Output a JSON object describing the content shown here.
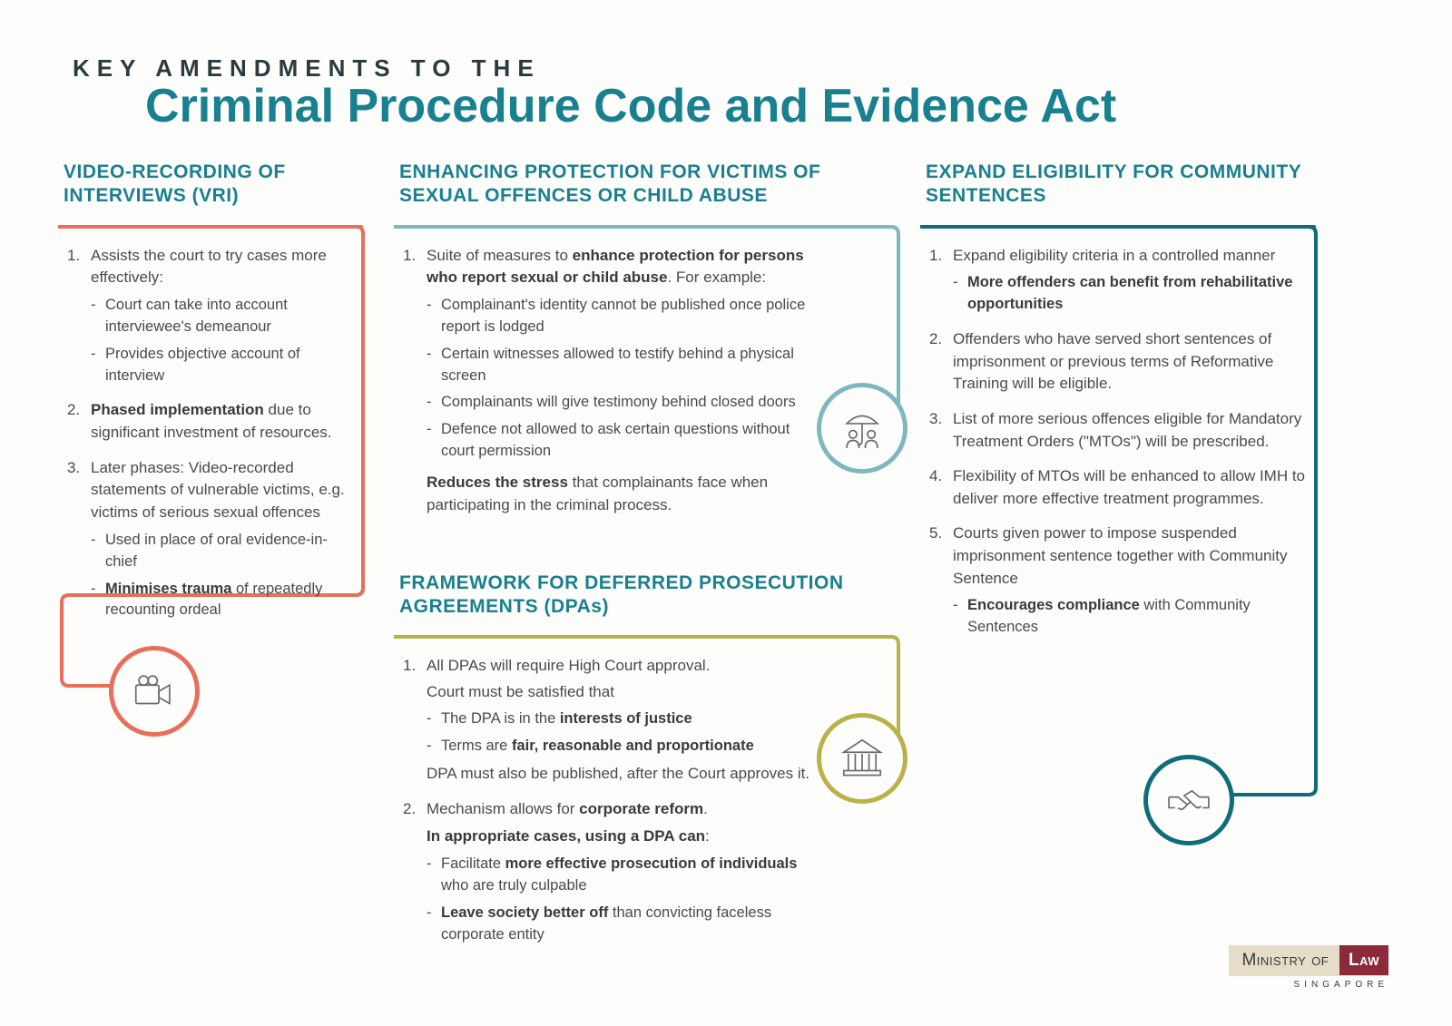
{
  "colors": {
    "teal": "#19808f",
    "coral": "#e76f5b",
    "teal_light": "#7fb7bf",
    "olive": "#b9b24a",
    "teal_dark": "#0f6d7a",
    "text": "#4a4a4a",
    "bg": "#fdfdfb"
  },
  "header": {
    "kicker": "KEY AMENDMENTS TO THE",
    "title": "Criminal Procedure Code and Evidence Act"
  },
  "sections": {
    "vri": {
      "title": "VIDEO-RECORDING OF INTERVIEWS (VRI)",
      "items": [
        {
          "text": "Assists the court to try cases more effectively:",
          "sub": [
            "Court can take into account interviewee's demeanour",
            "Provides objective account of interview"
          ]
        },
        {
          "html": "<b>Phased implementation</b> due to significant investment of resources."
        },
        {
          "text": "Later phases: Video-recorded statements of vulnerable victims, e.g. victims of serious sexual offences",
          "sub_html": [
            "Used in place of oral evidence-in-chief",
            "<b>Minimises trauma</b> of repeatedly recounting ordeal"
          ]
        }
      ]
    },
    "protection": {
      "title": "ENHANCING PROTECTION FOR VICTIMS OF SEXUAL OFFENCES OR CHILD ABUSE",
      "lead_html": "Suite of measures to <b>enhance protection for persons who report sexual or child abuse</b>. For example:",
      "sub": [
        "Complainant's identity cannot be published once police report is lodged",
        "Certain witnesses allowed to testify behind a physical screen",
        "Complainants will give testimony behind closed doors",
        "Defence not allowed to ask certain questions without court permission"
      ],
      "tail_html": "<b>Reduces the stress</b> that complainants face when participating in the criminal process."
    },
    "dpa": {
      "title": "FRAMEWORK FOR DEFERRED PROSECUTION AGREEMENTS (DPAs)",
      "item1": {
        "line1": "All DPAs will require High Court approval.",
        "line2": "Court must be satisfied that",
        "sub_html": [
          "The DPA is in the <b>interests of justice</b>",
          "Terms are <b>fair, reasonable and proportionate</b>"
        ],
        "line3": "DPA must also be published, after the Court approves it."
      },
      "item2": {
        "line1_html": "Mechanism allows for <b>corporate reform</b>.",
        "line2_html": "<b>In appropriate cases, using a DPA can</b>:",
        "sub_html": [
          "Facilitate <b>more effective prosecution of individuals</b> who are truly culpable",
          "<b>Leave society better off</b> than convicting faceless corporate entity"
        ]
      }
    },
    "community": {
      "title": "EXPAND ELIGIBILITY FOR COMMUNITY SENTENCES",
      "items_html": [
        {
          "text": "Expand eligibility criteria in a controlled manner",
          "sub": [
            "<b>More offenders can benefit from rehabilitative opportunities</b>"
          ]
        },
        {
          "text": "Offenders who have served short sentences of imprisonment or previous terms of Reformative Training will be eligible."
        },
        {
          "text": "List of more serious offences eligible for Mandatory Treatment Orders (\"MTOs\") will be prescribed."
        },
        {
          "text": "Flexibility of MTOs will be enhanced to allow IMH to deliver more effective treatment programmes."
        },
        {
          "text": "Courts given power to impose suspended imprisonment sentence together with Community Sentence",
          "sub": [
            "<b>Encourages compliance</b> with Community Sentences"
          ]
        }
      ]
    }
  },
  "logo": {
    "line1a": "Ministry of",
    "line1b": "Law",
    "line2": "SINGAPORE"
  }
}
